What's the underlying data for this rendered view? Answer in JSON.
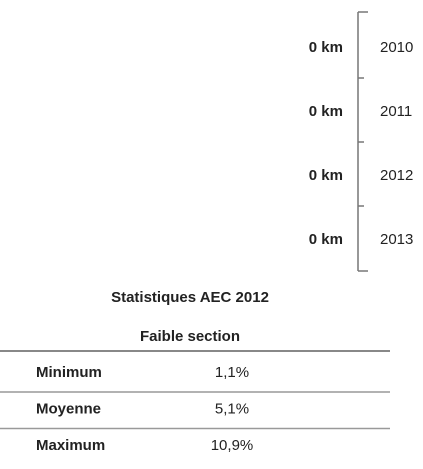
{
  "timeline": {
    "rows": [
      {
        "value": "0 km",
        "year": "2010"
      },
      {
        "value": "0 km",
        "year": "2011"
      },
      {
        "value": "0 km",
        "year": "2012"
      },
      {
        "value": "0 km",
        "year": "2013"
      }
    ]
  },
  "stats": {
    "title": "Statistiques AEC 2012",
    "subtitle": "Faible section",
    "rows": [
      [
        "Minimum",
        "1,1%"
      ],
      [
        "Moyenne",
        "5,1%"
      ],
      [
        "Maximum",
        "10,9%"
      ]
    ]
  }
}
